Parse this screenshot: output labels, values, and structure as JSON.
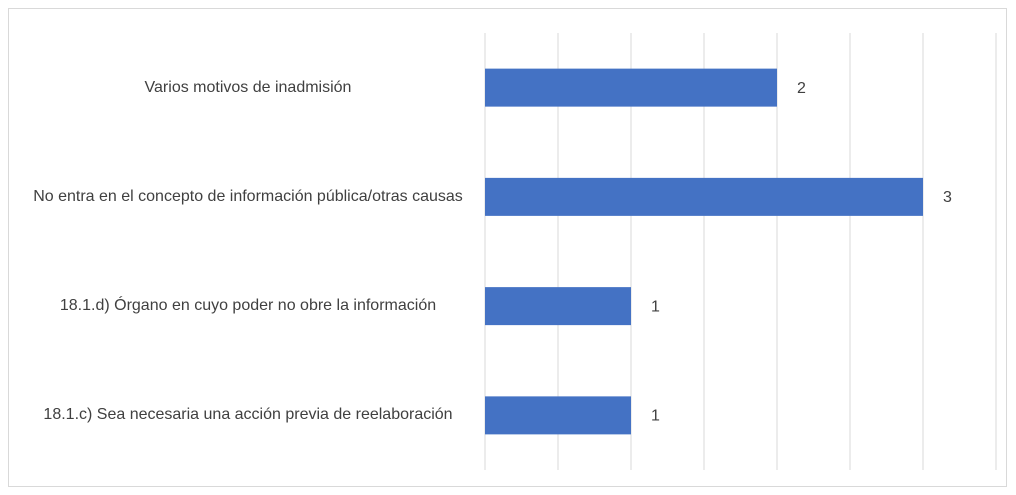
{
  "chart_data": {
    "type": "barh",
    "categories": [
      "Varios motivos de inadmisión",
      "No entra en el concepto de información pública/otras causas",
      "18.1.d) Órgano en cuyo poder no obre la información",
      "18.1.c) Sea necesaria una acción previa de reelaboración"
    ],
    "values": [
      2,
      3,
      1,
      1
    ],
    "color": "#4472c4",
    "xlim": [
      0,
      3.5
    ],
    "xticks": [
      0,
      0.5,
      1,
      1.5,
      2,
      2.5,
      3,
      3.5
    ],
    "grid": true
  }
}
